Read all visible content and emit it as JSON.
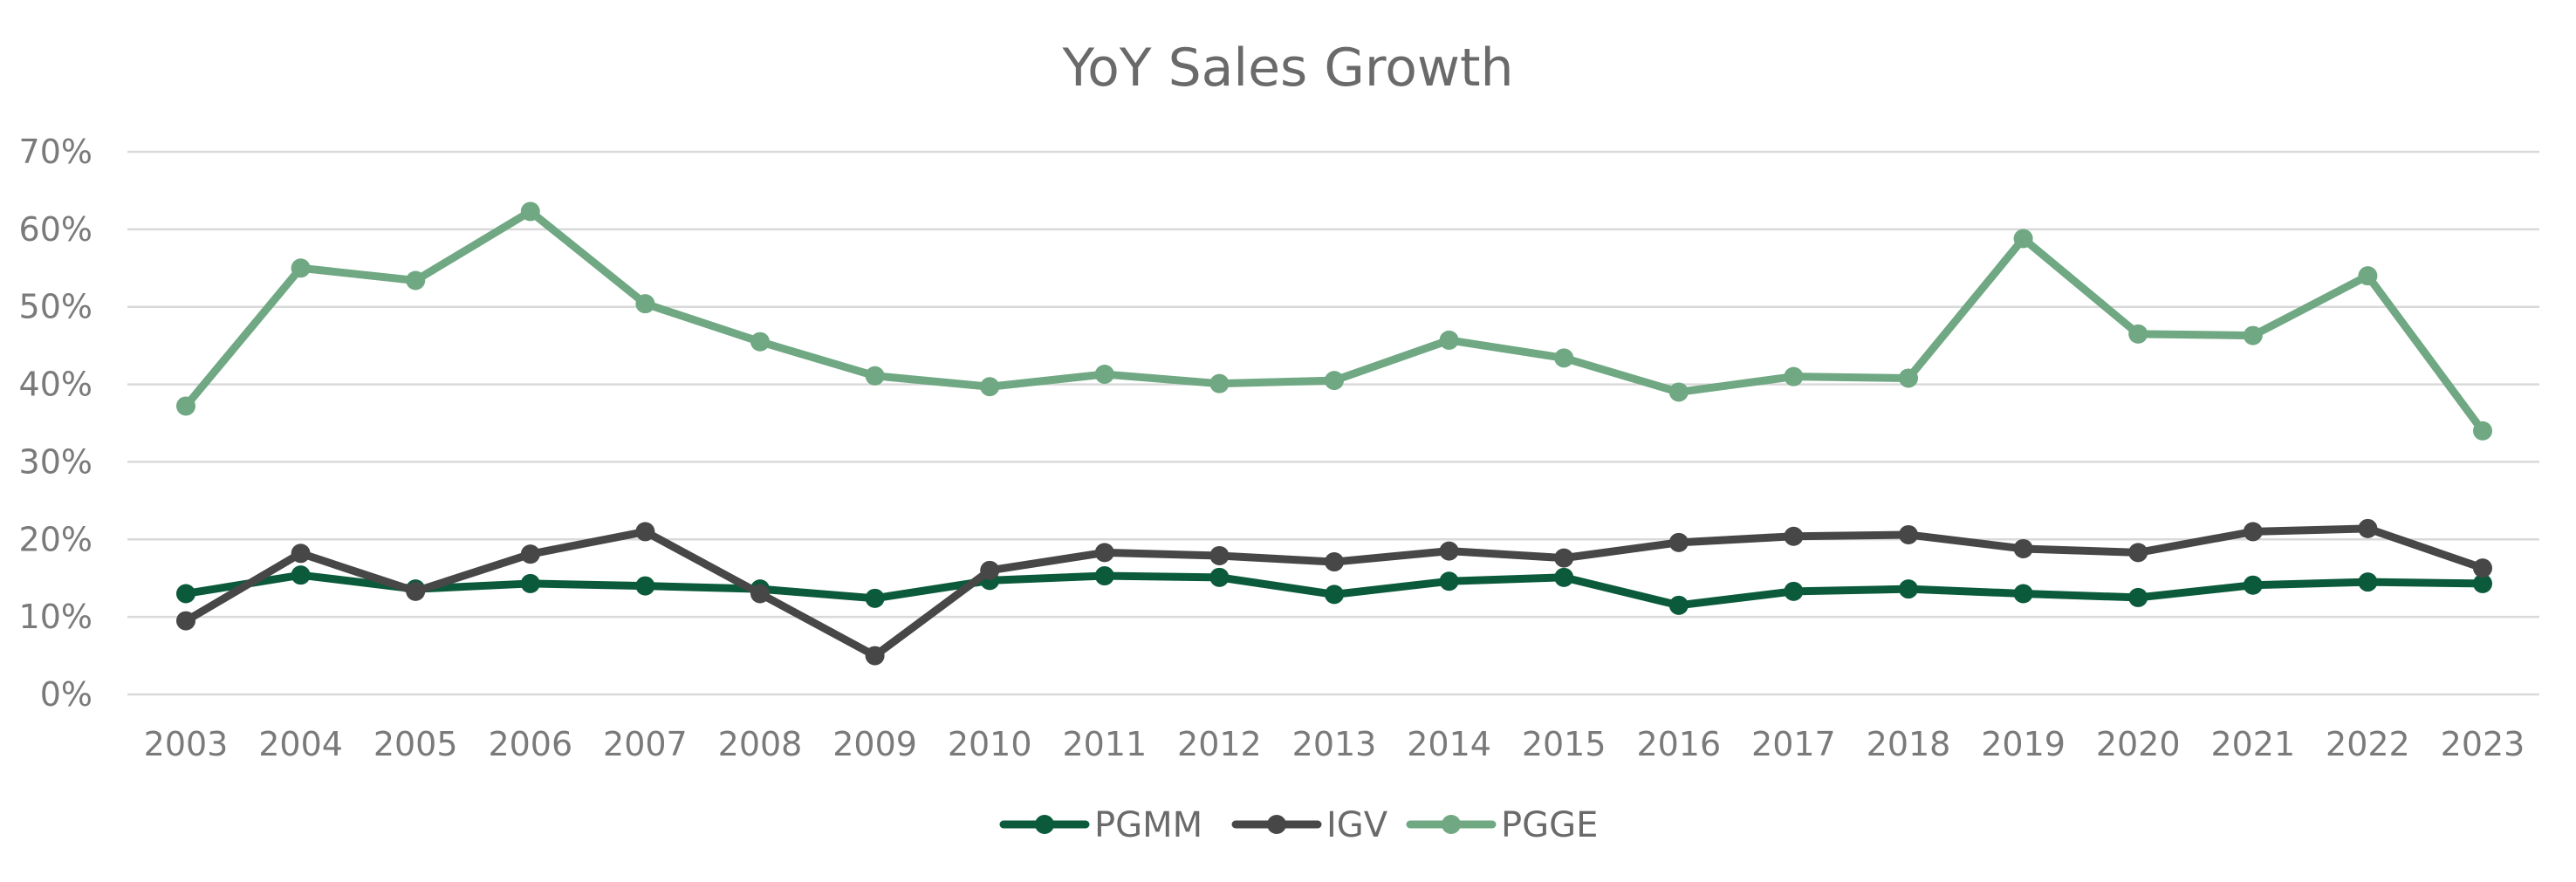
{
  "chart_data": {
    "type": "line",
    "title": "YoY Sales Growth",
    "xlabel": "",
    "ylabel": "",
    "categories": [
      "2003",
      "2004",
      "2005",
      "2006",
      "2007",
      "2008",
      "2009",
      "2010",
      "2011",
      "2012",
      "2013",
      "2014",
      "2015",
      "2016",
      "2017",
      "2018",
      "2019",
      "2020",
      "2021",
      "2022",
      "2023"
    ],
    "y_ticks": [
      "0%",
      "10%",
      "20%",
      "30%",
      "40%",
      "50%",
      "60%",
      "70%"
    ],
    "ylim": [
      0,
      70
    ],
    "y_unit": "%",
    "grid": true,
    "legend_position": "bottom",
    "series": [
      {
        "name": "PGMM",
        "color": "#0b5a3c",
        "values": [
          13.0,
          15.4,
          13.6,
          14.3,
          14.0,
          13.6,
          12.4,
          14.7,
          15.3,
          15.1,
          12.9,
          14.6,
          15.1,
          11.5,
          13.3,
          13.6,
          13.0,
          12.5,
          14.1,
          14.5,
          14.3
        ]
      },
      {
        "name": "IGV",
        "color": "#474747",
        "values": [
          9.5,
          18.2,
          13.3,
          18.1,
          21.0,
          13.0,
          5.0,
          16.0,
          18.3,
          17.9,
          17.1,
          18.5,
          17.6,
          19.6,
          20.4,
          20.6,
          18.8,
          18.3,
          21.0,
          21.4,
          16.3
        ]
      },
      {
        "name": "PGGE",
        "color": "#6fa882",
        "values": [
          37.2,
          55.0,
          53.4,
          62.3,
          50.4,
          45.5,
          41.1,
          39.7,
          41.3,
          40.1,
          40.5,
          45.7,
          43.4,
          39.0,
          41.0,
          40.8,
          58.8,
          46.5,
          46.3,
          54.0,
          34.0
        ]
      }
    ]
  }
}
